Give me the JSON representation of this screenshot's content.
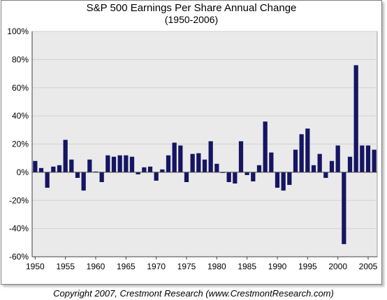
{
  "chart_data": {
    "type": "bar",
    "title": "S&P 500 Earnings Per Share  Annual Change",
    "subtitle": "(1950-2006)",
    "xlabel": "",
    "ylabel": "",
    "ylim": [
      -0.6,
      1.0
    ],
    "yticks": [
      -0.6,
      -0.4,
      -0.2,
      0.0,
      0.2,
      0.4,
      0.6,
      0.8,
      1.0
    ],
    "ytick_labels": [
      "-60%",
      "-40%",
      "-20%",
      "0%",
      "20%",
      "40%",
      "60%",
      "80%",
      "100%"
    ],
    "xtick_labels": [
      "1950",
      "1955",
      "1960",
      "1965",
      "1970",
      "1975",
      "1980",
      "1985",
      "1990",
      "1995",
      "2000",
      "2005"
    ],
    "grid": true,
    "legend": "none",
    "categories": [
      1950,
      1951,
      1952,
      1953,
      1954,
      1955,
      1956,
      1957,
      1958,
      1959,
      1960,
      1961,
      1962,
      1963,
      1964,
      1965,
      1966,
      1967,
      1968,
      1969,
      1970,
      1971,
      1972,
      1973,
      1974,
      1975,
      1976,
      1977,
      1978,
      1979,
      1980,
      1981,
      1982,
      1983,
      1984,
      1985,
      1986,
      1987,
      1988,
      1989,
      1990,
      1991,
      1992,
      1993,
      1994,
      1995,
      1996,
      1997,
      1998,
      1999,
      2000,
      2001,
      2002,
      2003,
      2004,
      2005,
      2006
    ],
    "values": [
      0.08,
      0.03,
      -0.11,
      0.04,
      0.05,
      0.23,
      0.09,
      -0.04,
      -0.13,
      0.09,
      0.005,
      -0.07,
      0.12,
      0.11,
      0.12,
      0.12,
      0.11,
      -0.015,
      0.035,
      0.04,
      -0.06,
      0.02,
      0.12,
      0.21,
      0.19,
      -0.07,
      0.13,
      0.135,
      0.09,
      0.22,
      0.06,
      -0.005,
      -0.07,
      -0.08,
      0.22,
      -0.02,
      -0.065,
      0.05,
      0.36,
      0.14,
      -0.11,
      -0.13,
      -0.09,
      0.16,
      0.27,
      0.31,
      0.05,
      0.13,
      -0.04,
      0.08,
      0.19,
      -0.51,
      0.11,
      0.76,
      0.19,
      0.19,
      0.16
    ],
    "colors": {
      "bar": "#151563",
      "plot_background": "#eaeaea",
      "grid": "#d2d2d2",
      "axis": "#404040"
    }
  },
  "footer": {
    "copyright": "Copyright 2007, Crestmont Research (www.CrestmontResearch.com)"
  }
}
